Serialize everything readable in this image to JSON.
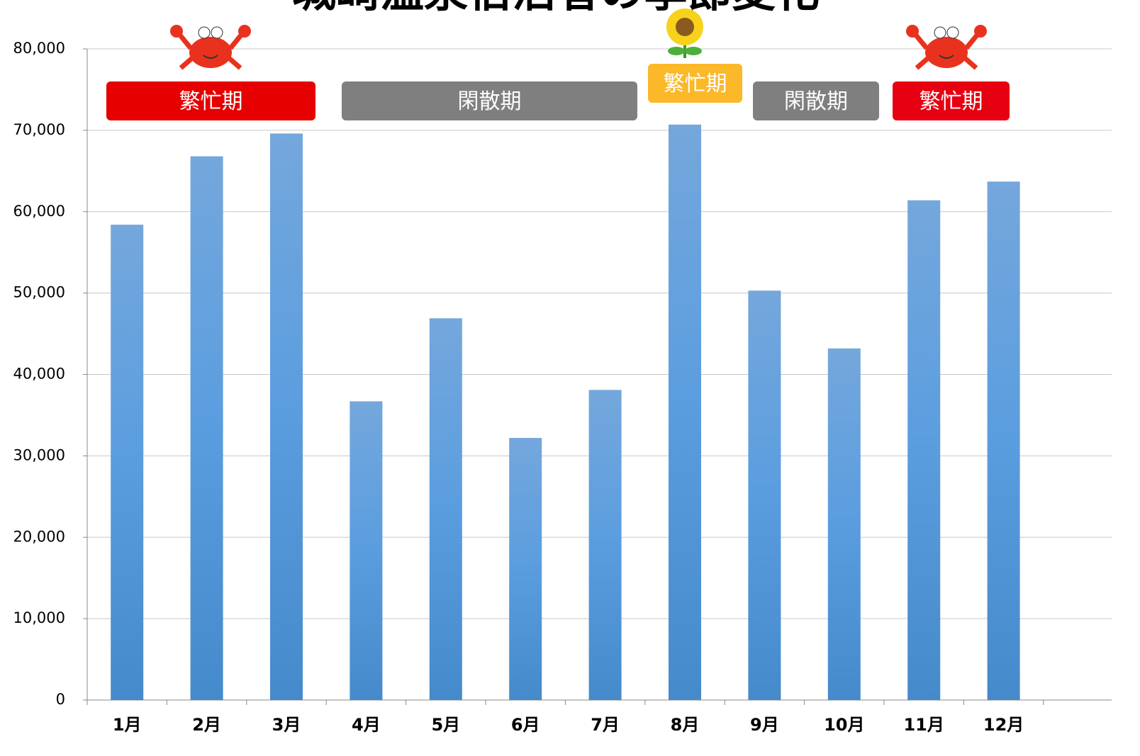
{
  "chart_data": {
    "type": "bar",
    "title": "城崎温泉宿泊者の季節変化",
    "categories": [
      "1月",
      "2月",
      "3月",
      "4月",
      "5月",
      "6月",
      "7月",
      "8月",
      "9月",
      "10月",
      "11月",
      "12月"
    ],
    "values": [
      58400,
      66800,
      69600,
      36700,
      46900,
      32200,
      38100,
      70700,
      50300,
      43200,
      61400,
      63700
    ],
    "color": "#5b9bd5",
    "ylim": [
      0,
      80000
    ],
    "yticks": [
      0,
      {
        "value": 10000,
        "label": "10,000"
      },
      {
        "value": 20000,
        "label": "20,000"
      },
      {
        "value": 30000,
        "label": "30,000"
      },
      {
        "value": 40000,
        "label": "40,000"
      },
      {
        "value": 50000,
        "label": "50,000"
      },
      {
        "value": 60000,
        "label": "60,000"
      },
      {
        "value": 70000,
        "label": "70,000"
      },
      {
        "value": 80000,
        "label": "80,000"
      }
    ],
    "grid": true,
    "annotations": [
      {
        "text": "繁忙期",
        "color": "#e60000"
      },
      {
        "text": "閑散期",
        "color": "#7f7f7f"
      },
      {
        "text": "繁忙期",
        "color": "#fbb829"
      },
      {
        "text": "閑散期",
        "color": "#7f7f7f"
      },
      {
        "text": "繁忙期",
        "color": "#e60012"
      }
    ]
  }
}
